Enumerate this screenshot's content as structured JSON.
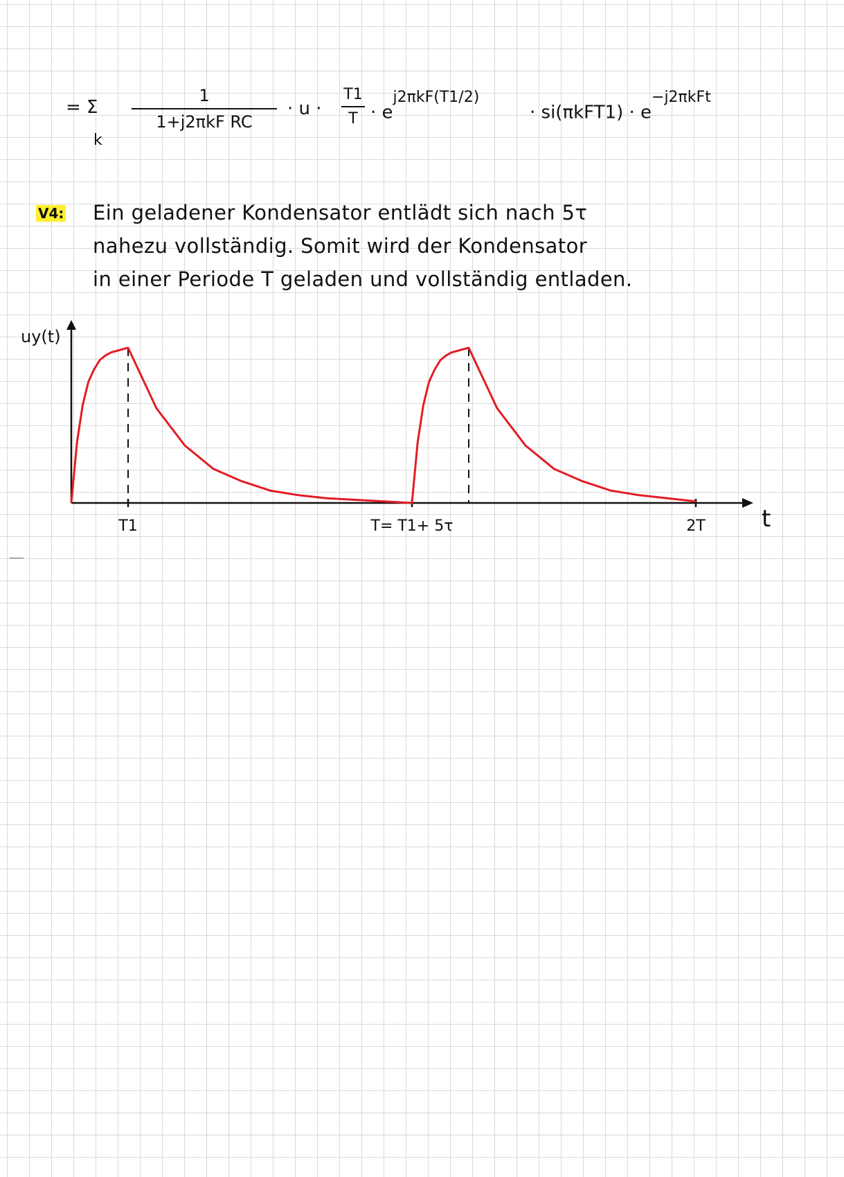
{
  "formula": {
    "eq_sum": "= Σ",
    "sum_index": "k",
    "frac1_num": "1",
    "frac1_den": "1+j2πkF RC",
    "mid_u": "· u ·",
    "frac2_num": "T1",
    "frac2_den": "T",
    "e_part": "· e",
    "e_exp": "j2πkF(T1/2)",
    "si_part": "· si(πkFT1) · e",
    "si_exp": "−j2πkFt"
  },
  "task": {
    "tag": "V4:",
    "lines": [
      "Ein geladener Kondensator entlädt sich nach 5τ",
      "nahezu vollständig. Somit wird der Kondensator",
      "in einer Periode T geladen und vollständig entladen."
    ]
  },
  "chart_data": {
    "type": "line",
    "title": "",
    "ylabel": "uy(t)",
    "xlabel": "t",
    "x_tick_labels": [
      "T1",
      "T= T1+ 5τ",
      "2T"
    ],
    "x_ticks": [
      0.5,
      3,
      5.5
    ],
    "xlim": [
      0,
      5.5
    ],
    "ylim": [
      0,
      1
    ],
    "grid": false,
    "legend": "none",
    "curve_color": "#e31c24",
    "series": [
      {
        "x": [
          0,
          0.05,
          0.1,
          0.15,
          0.2,
          0.25,
          0.3,
          0.35,
          0.4,
          0.45,
          0.5,
          0.75,
          1.0,
          1.25,
          1.5,
          1.75,
          2.0,
          2.25,
          2.5,
          2.75,
          3.0,
          3.05,
          3.1,
          3.15,
          3.2,
          3.25,
          3.3,
          3.35,
          3.4,
          3.45,
          3.5,
          3.75,
          4.0,
          4.25,
          4.5,
          4.75,
          5.0,
          5.25,
          5.5
        ],
        "y": [
          0,
          0.39,
          0.63,
          0.78,
          0.86,
          0.92,
          0.95,
          0.97,
          0.98,
          0.99,
          1.0,
          0.61,
          0.37,
          0.22,
          0.14,
          0.08,
          0.05,
          0.03,
          0.02,
          0.01,
          0.0,
          0.39,
          0.63,
          0.78,
          0.86,
          0.92,
          0.95,
          0.97,
          0.98,
          0.99,
          1.0,
          0.61,
          0.37,
          0.22,
          0.14,
          0.08,
          0.05,
          0.03,
          0.01
        ]
      }
    ],
    "dashed_markers_at": [
      0.5,
      3.5
    ]
  }
}
